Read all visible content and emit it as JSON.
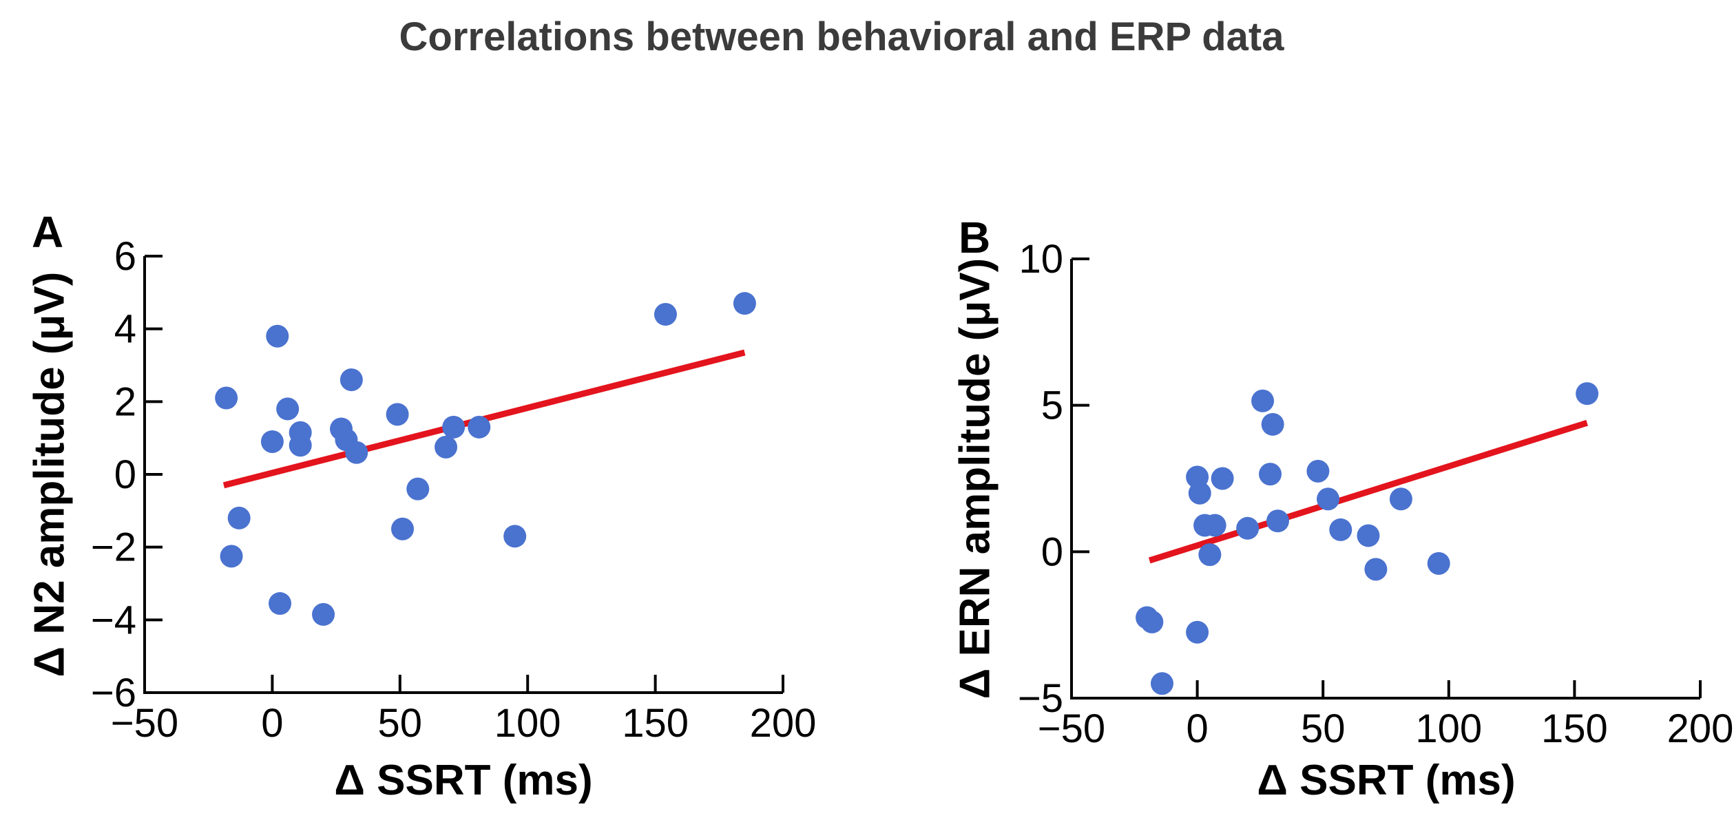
{
  "title": "Correlations between behavioral and ERP data",
  "colors": {
    "title_text": "#3b3b3b",
    "axis": "#000000",
    "point_fill": "#4a72cf",
    "trend_line": "#e3141d",
    "background": "#ffffff"
  },
  "chart_data": [
    {
      "type": "scatter",
      "panel_label": "A",
      "xlabel": "Δ SSRT (ms)",
      "ylabel": "Δ N2 amplitude (μV)",
      "xlim": [
        -50,
        200
      ],
      "ylim": [
        -6,
        6
      ],
      "xticks": [
        -50,
        0,
        50,
        100,
        150,
        200
      ],
      "yticks": [
        -6,
        -4,
        -2,
        0,
        2,
        4,
        6
      ],
      "grid": false,
      "legend": null,
      "points": [
        [
          -18,
          2.1
        ],
        [
          -16,
          -2.25
        ],
        [
          -13,
          -1.2
        ],
        [
          0,
          0.9
        ],
        [
          2,
          3.8
        ],
        [
          3,
          -3.55
        ],
        [
          6,
          1.8
        ],
        [
          11,
          1.15
        ],
        [
          11,
          0.8
        ],
        [
          20,
          -3.85
        ],
        [
          27,
          1.25
        ],
        [
          29,
          0.95
        ],
        [
          31,
          2.6
        ],
        [
          33,
          0.6
        ],
        [
          49,
          1.65
        ],
        [
          51,
          -1.5
        ],
        [
          57,
          -0.4
        ],
        [
          68,
          0.75
        ],
        [
          71,
          1.3
        ],
        [
          81,
          1.3
        ],
        [
          95,
          -1.7
        ],
        [
          154,
          4.4
        ],
        [
          185,
          4.7
        ]
      ],
      "trend_line": {
        "x": [
          -19,
          185
        ],
        "y": [
          -0.3,
          3.35
        ]
      }
    },
    {
      "type": "scatter",
      "panel_label": "B",
      "xlabel": "Δ SSRT (ms)",
      "ylabel": "Δ ERN amplitude (μV)",
      "xlim": [
        -50,
        200
      ],
      "ylim": [
        -5,
        10
      ],
      "xticks": [
        -50,
        0,
        50,
        100,
        150,
        200
      ],
      "yticks": [
        -5,
        0,
        5,
        10
      ],
      "grid": false,
      "legend": null,
      "points": [
        [
          -20,
          -2.25
        ],
        [
          -18,
          -2.4
        ],
        [
          -14,
          -4.5
        ],
        [
          0,
          2.55
        ],
        [
          0,
          -2.75
        ],
        [
          1,
          2.0
        ],
        [
          3,
          0.9
        ],
        [
          5,
          -0.1
        ],
        [
          7,
          0.9
        ],
        [
          10,
          2.5
        ],
        [
          20,
          0.8
        ],
        [
          26,
          5.15
        ],
        [
          29,
          2.65
        ],
        [
          30,
          4.35
        ],
        [
          32,
          1.05
        ],
        [
          48,
          2.75
        ],
        [
          52,
          1.8
        ],
        [
          57,
          0.75
        ],
        [
          68,
          0.55
        ],
        [
          71,
          -0.6
        ],
        [
          81,
          1.8
        ],
        [
          96,
          -0.4
        ],
        [
          155,
          5.4
        ]
      ],
      "trend_line": {
        "x": [
          -19,
          155
        ],
        "y": [
          -0.3,
          4.4
        ]
      }
    }
  ]
}
